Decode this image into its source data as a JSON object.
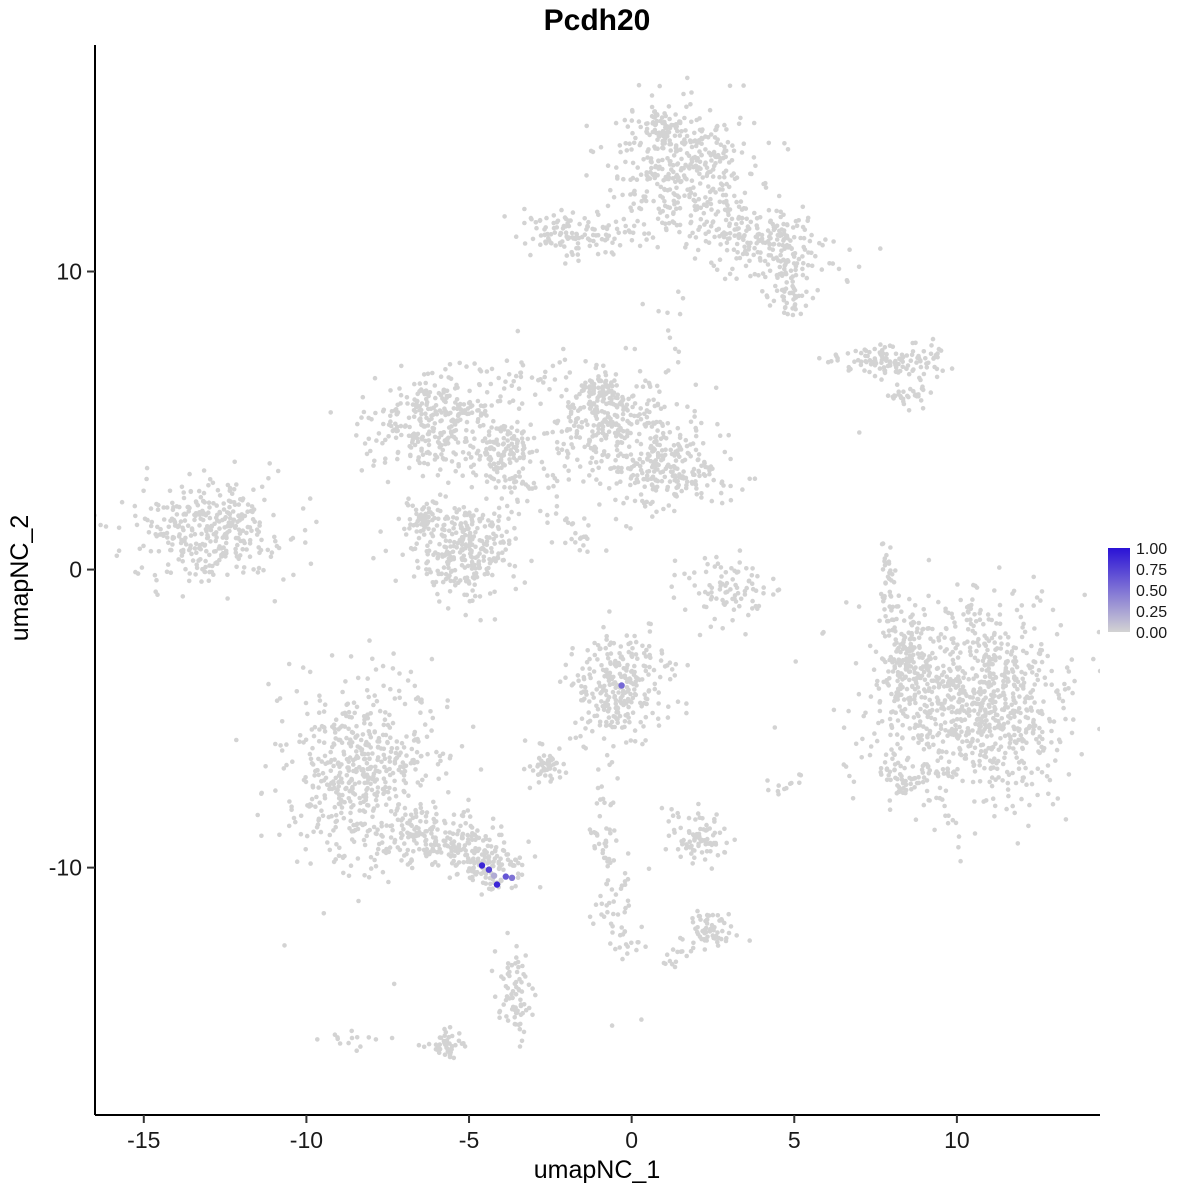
{
  "figure": {
    "background": "#ffffff"
  },
  "chart_data": {
    "type": "scatter",
    "title": "Pcdh20",
    "xlabel": "umapNC_1",
    "ylabel": "umapNC_2",
    "xlim": [
      -16.5,
      14.4
    ],
    "ylim": [
      -18.3,
      17.6
    ],
    "x_ticks": [
      -15,
      -10,
      -5,
      0,
      5,
      10
    ],
    "y_ticks": [
      10,
      0,
      -10
    ],
    "grid": false,
    "point_color_low": "#d3d3d3",
    "point_color_high": "#2a12d6",
    "legend": {
      "position": "right",
      "tick_labels": [
        "1.00",
        "0.75",
        "0.50",
        "0.25",
        "0.00"
      ]
    },
    "clusters": [
      {
        "x": 1.6,
        "y": 13.5,
        "sx": 1.05,
        "sy": 1.1,
        "n": 400,
        "rot": 0
      },
      {
        "x": 0.9,
        "y": 14.9,
        "sx": 0.35,
        "sy": 0.3,
        "n": 45,
        "rot": 0
      },
      {
        "x": 4.1,
        "y": 11.0,
        "sx": 1.05,
        "sy": 0.6,
        "n": 230,
        "rot": -15
      },
      {
        "x": 4.8,
        "y": 9.2,
        "sx": 0.3,
        "sy": 0.3,
        "n": 40,
        "rot": 0
      },
      {
        "x": -1.9,
        "y": 11.3,
        "sx": 0.7,
        "sy": 0.35,
        "n": 110,
        "rot": 0
      },
      {
        "x": 8.15,
        "y": 7.0,
        "sx": 0.95,
        "sy": 0.28,
        "n": 120,
        "rot": -4
      },
      {
        "x": 8.6,
        "y": 5.85,
        "sx": 0.32,
        "sy": 0.18,
        "n": 30,
        "rot": 0
      },
      {
        "x": -5.9,
        "y": 4.9,
        "sx": 1.15,
        "sy": 0.9,
        "n": 330,
        "rot": 15
      },
      {
        "x": -3.9,
        "y": 3.9,
        "sx": 0.45,
        "sy": 0.45,
        "n": 100,
        "rot": 0
      },
      {
        "x": -0.8,
        "y": 4.8,
        "sx": 0.9,
        "sy": 0.9,
        "n": 280,
        "rot": 0
      },
      {
        "x": 1.1,
        "y": 3.4,
        "sx": 1.0,
        "sy": 0.7,
        "n": 240,
        "rot": 0
      },
      {
        "x": -1.0,
        "y": 6.0,
        "sx": 0.35,
        "sy": 0.3,
        "n": 60,
        "rot": 0
      },
      {
        "x": -5.1,
        "y": 0.7,
        "sx": 0.8,
        "sy": 0.9,
        "n": 300,
        "rot": 0
      },
      {
        "x": -6.4,
        "y": 1.7,
        "sx": 0.3,
        "sy": 0.25,
        "n": 50,
        "rot": 0
      },
      {
        "x": -12.9,
        "y": 1.3,
        "sx": 1.15,
        "sy": 0.85,
        "n": 350,
        "rot": 8
      },
      {
        "x": 3.0,
        "y": -0.7,
        "sx": 0.75,
        "sy": 0.6,
        "n": 90,
        "rot": 0
      },
      {
        "x": -0.4,
        "y": -4.0,
        "sx": 0.75,
        "sy": 0.9,
        "n": 280,
        "rot": 0
      },
      {
        "x": 10.4,
        "y": -4.5,
        "sx": 1.5,
        "sy": 1.7,
        "n": 950,
        "rot": 0
      },
      {
        "x": 8.4,
        "y": -3.0,
        "sx": 0.35,
        "sy": 0.8,
        "n": 120,
        "rot": 0
      },
      {
        "x": -8.3,
        "y": -6.9,
        "sx": 1.2,
        "sy": 1.6,
        "n": 560,
        "rot": 0
      },
      {
        "x": -5.4,
        "y": -9.2,
        "sx": 1.0,
        "sy": 0.45,
        "n": 220,
        "rot": -18
      },
      {
        "x": -4.4,
        "y": -10.1,
        "sx": 0.42,
        "sy": 0.38,
        "n": 70,
        "rot": 0
      },
      {
        "x": -2.65,
        "y": -6.6,
        "sx": 0.28,
        "sy": 0.26,
        "n": 50,
        "rot": 0
      },
      {
        "x": 2.1,
        "y": -9.0,
        "sx": 0.45,
        "sy": 0.4,
        "n": 85,
        "rot": 0
      },
      {
        "x": 2.45,
        "y": -12.1,
        "sx": 0.35,
        "sy": 0.3,
        "n": 60,
        "rot": 0
      },
      {
        "x": -3.6,
        "y": -14.3,
        "sx": 0.28,
        "sy": 0.7,
        "n": 75,
        "rot": 0
      },
      {
        "x": -5.75,
        "y": -16.0,
        "sx": 0.28,
        "sy": 0.28,
        "n": 45,
        "rot": 0
      },
      {
        "x": -8.6,
        "y": -15.8,
        "sx": 0.5,
        "sy": 0.2,
        "n": 14,
        "rot": 0
      },
      {
        "x": 4.7,
        "y": -7.1,
        "sx": 0.35,
        "sy": 0.22,
        "n": 10,
        "rot": 0
      },
      {
        "x": 8.3,
        "y": -7.0,
        "sx": 0.35,
        "sy": 0.3,
        "n": 35,
        "rot": 0
      }
    ],
    "strands": [
      {
        "x1": -0.7,
        "y1": 11.4,
        "x2": 0.9,
        "y2": 11.1,
        "n": 18,
        "j": 0.25
      },
      {
        "x1": -5.0,
        "y1": 4.0,
        "x2": -2.6,
        "y2": 2.2,
        "n": 35,
        "j": 0.3
      },
      {
        "x1": -2.7,
        "y1": 2.0,
        "x2": -1.3,
        "y2": 0.8,
        "n": 25,
        "j": 0.25
      },
      {
        "x1": -4.2,
        "y1": 6.0,
        "x2": -1.8,
        "y2": 6.9,
        "n": 26,
        "j": 0.35
      },
      {
        "x1": 7.9,
        "y1": 0.8,
        "x2": 7.9,
        "y2": -2.2,
        "n": 40,
        "j": 0.12
      },
      {
        "x1": -1.0,
        "y1": -8.4,
        "x2": -0.1,
        "y2": -13.1,
        "n": 80,
        "j": 0.3
      },
      {
        "x1": 1.0,
        "y1": -13.3,
        "x2": 2.0,
        "y2": -12.5,
        "n": 16,
        "j": 0.2
      },
      {
        "x1": -0.5,
        "y1": -5.9,
        "x2": -0.9,
        "y2": -8.2,
        "n": 14,
        "j": 0.25
      },
      {
        "x1": 1.45,
        "y1": 9.4,
        "x2": 1.2,
        "y2": 5.2,
        "n": 20,
        "j": 0.5
      },
      {
        "x1": 4.6,
        "y1": 10.2,
        "x2": 4.8,
        "y2": 9.6,
        "n": 10,
        "j": 0.2
      }
    ],
    "sparse_points": [
      [
        -3.5,
        8.0
      ],
      [
        -2.1,
        7.4
      ],
      [
        7.0,
        4.6
      ],
      [
        5.9,
        -2.1
      ],
      [
        12.2,
        -8.6
      ],
      [
        -0.6,
        -15.3
      ],
      [
        -7.3,
        -13.9
      ],
      [
        4.4,
        -5.3
      ],
      [
        5.2,
        -6.9
      ],
      [
        4.2,
        -7.4
      ],
      [
        6.6,
        -1.1
      ],
      [
        -10.9,
        -4.4
      ],
      [
        0.3,
        -15.1
      ],
      [
        -13.8,
        -0.9
      ],
      [
        2.6,
        6.1
      ]
    ],
    "expressing_cells": [
      {
        "x": -4.6,
        "y": -9.93,
        "value": 0.9
      },
      {
        "x": -4.39,
        "y": -10.07,
        "value": 0.75
      },
      {
        "x": -4.14,
        "y": -10.57,
        "value": 0.9
      },
      {
        "x": -3.87,
        "y": -10.3,
        "value": 0.65
      },
      {
        "x": -3.68,
        "y": -10.34,
        "value": 0.5
      },
      {
        "x": -4.23,
        "y": -10.27,
        "value": 0.2
      },
      {
        "x": -0.31,
        "y": -3.89,
        "value": 0.55
      }
    ]
  }
}
